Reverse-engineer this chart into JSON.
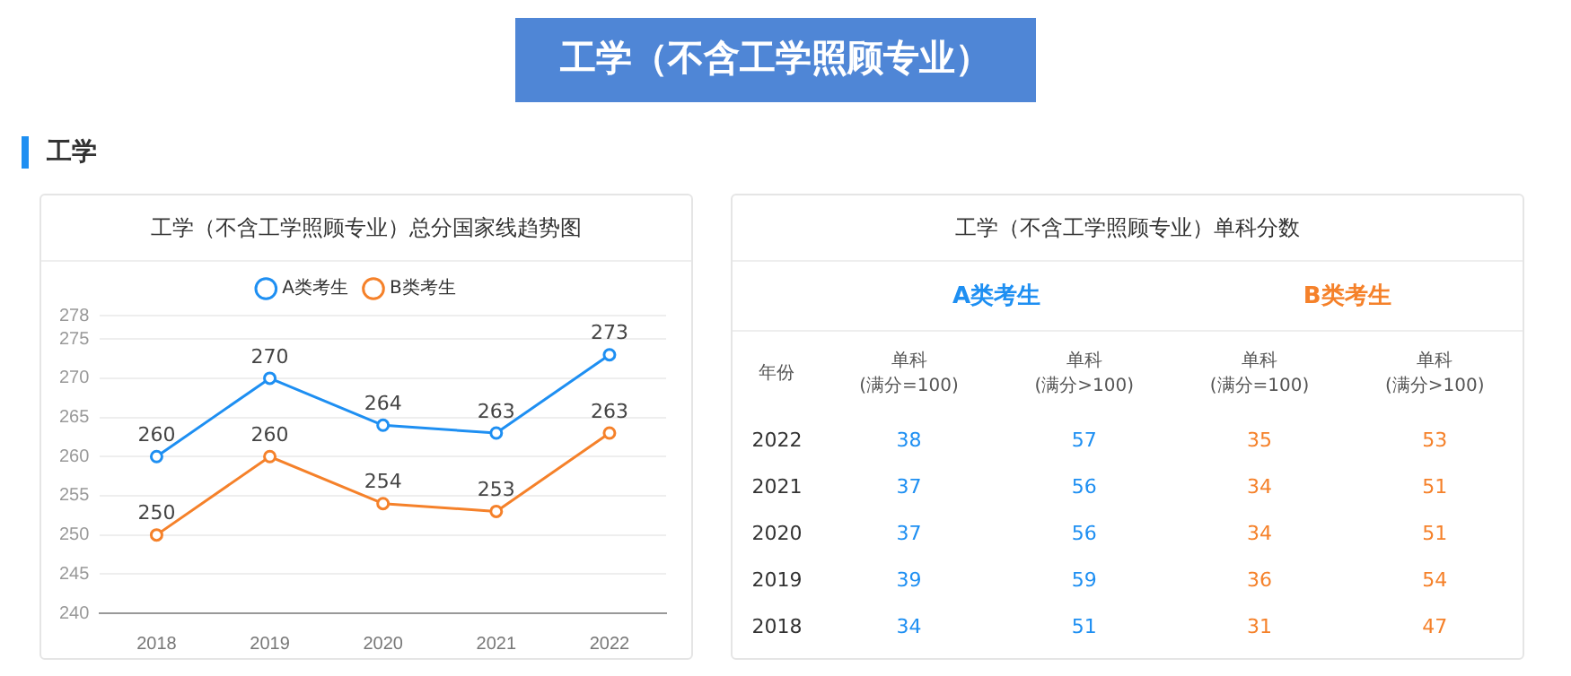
{
  "chart_data": [
    {
      "type": "line",
      "title": "工学（不含工学照顾专业）总分国家线趋势图",
      "annotations": [
        "工学（不含工学照顾专业）",
        "工学"
      ],
      "categories": [
        "2018",
        "2019",
        "2020",
        "2021",
        "2022"
      ],
      "series": [
        {
          "name": "A类考生",
          "color": "#1e8ff2",
          "values": [
            260,
            270,
            264,
            263,
            273
          ]
        },
        {
          "name": "B类考生",
          "color": "#f5812a",
          "values": [
            250,
            260,
            254,
            253,
            263
          ]
        }
      ],
      "ylim": [
        240,
        278
      ],
      "yticks": [
        240,
        245,
        250,
        255,
        260,
        265,
        270,
        275,
        278
      ],
      "grid": "y",
      "legend": "top",
      "marker": "circle",
      "line_style": "solid",
      "data_labels": true
    },
    {
      "type": "heatmap",
      "title": "工学（不含工学照顾专业）单科分数",
      "ylabel": "年份",
      "annotations": [
        "A类考生",
        "B类考生"
      ],
      "categories": [
        "单科\n(满分=100)",
        "单科\n(满分>100)",
        "单科\n(满分=100)",
        "单科\n(满分>100)"
      ],
      "colors": [
        "#1e8ff2",
        "#1e8ff2",
        "#f5812a",
        "#f5812a"
      ],
      "y_categories": [
        "2022",
        "2021",
        "2020",
        "2019",
        "2018"
      ],
      "data_labels": true,
      "cells": [
        [
          38,
          57,
          35,
          53
        ],
        [
          37,
          56,
          34,
          51
        ],
        [
          37,
          56,
          34,
          51
        ],
        [
          39,
          59,
          36,
          54
        ],
        [
          34,
          51,
          31,
          47
        ]
      ]
    }
  ]
}
